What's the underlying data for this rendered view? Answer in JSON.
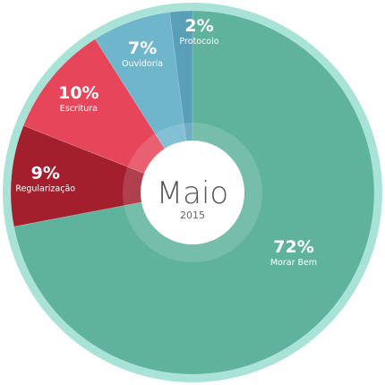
{
  "chart_data": {
    "type": "pie",
    "center_title": "Maio",
    "center_subtitle": "2015",
    "slices": [
      {
        "label": "Morar Bem",
        "percent_label": "72%",
        "value": 72,
        "color": "#5fb39c"
      },
      {
        "label": "Regularização",
        "percent_label": "9%",
        "value": 9,
        "color": "#a31f2e"
      },
      {
        "label": "Escritura",
        "percent_label": "10%",
        "value": 10,
        "color": "#e6455a"
      },
      {
        "label": "Ouvidoria",
        "percent_label": "7%",
        "value": 7,
        "color": "#6fb5cc"
      },
      {
        "label": "Protocolo",
        "percent_label": "2%",
        "value": 2,
        "color": "#5a9fb8"
      }
    ],
    "ring_color": "#a9e3d8"
  }
}
